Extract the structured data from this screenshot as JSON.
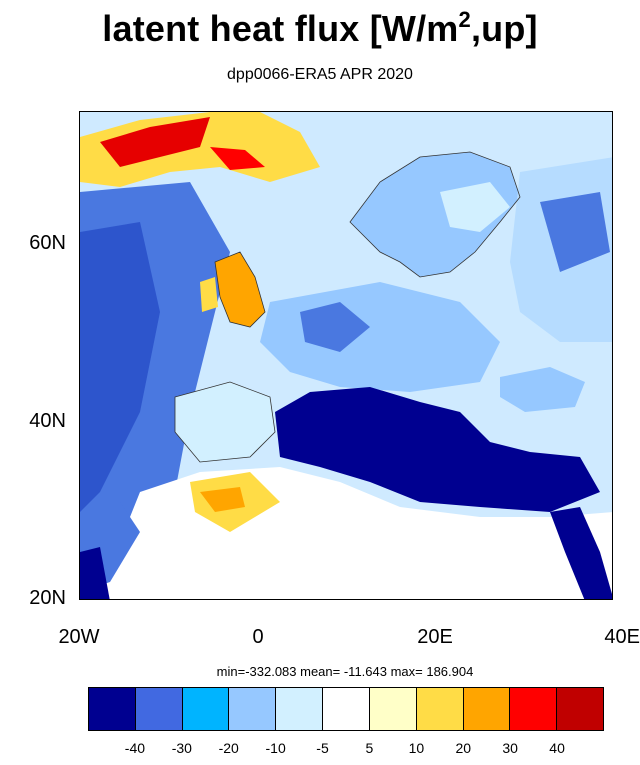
{
  "title": {
    "main": "latent heat flux [W/m",
    "sup": "2",
    "tail": ",up]"
  },
  "subtitle": "dpp0066-ERA5  APR 2020",
  "stats": "min=-332.083  mean= -11.643  max= 186.904",
  "map": {
    "lon_range": [
      -20,
      40
    ],
    "lat_range": [
      20,
      75
    ],
    "lat_labels": [
      "60N",
      "40N",
      "20N"
    ],
    "lon_labels": [
      "20W",
      "0",
      "20E",
      "40E"
    ]
  },
  "colorbar": {
    "colors": [
      "#000090",
      "#4169e1",
      "#00b4ff",
      "#96c8ff",
      "#d2f0ff",
      "#ffffff",
      "#ffffc8",
      "#ffdc46",
      "#ffa500",
      "#ff0000",
      "#c00000"
    ],
    "labels": [
      "-40",
      "-30",
      "-20",
      "-10",
      "-5",
      "5",
      "10",
      "20",
      "30",
      "40"
    ]
  }
}
